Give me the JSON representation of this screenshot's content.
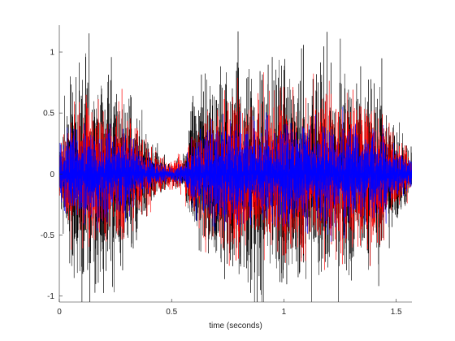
{
  "chart_data": {
    "type": "line",
    "title": "",
    "xlabel": "time (seconds)",
    "ylabel": "",
    "xlim": [
      0,
      1.57
    ],
    "ylim": [
      -1.05,
      1.22
    ],
    "xticks": [
      0,
      0.5,
      1,
      1.5
    ],
    "xtick_labels": [
      "0",
      "0.5",
      "1",
      "1.5"
    ],
    "yticks": [
      -1,
      -0.5,
      0,
      0.5,
      1
    ],
    "ytick_labels": [
      "-1",
      "-0.5",
      "0",
      "0.5",
      "1"
    ],
    "grid": false,
    "legend": "none",
    "box": "open",
    "series": [
      {
        "color": "#000000",
        "values_shown_as": "dense noisy waveform",
        "envelope": {
          "t": [
            0,
            0.05,
            0.1,
            0.15,
            0.2,
            0.25,
            0.3,
            0.35,
            0.4,
            0.45,
            0.5,
            0.55,
            0.6,
            0.65,
            0.7,
            0.8,
            0.9,
            1.0,
            1.1,
            1.2,
            1.3,
            1.4,
            1.45,
            1.5,
            1.55,
            1.57
          ],
          "amplitude": [
            0.25,
            0.65,
            0.85,
            0.78,
            0.72,
            0.68,
            0.6,
            0.45,
            0.28,
            0.15,
            0.08,
            0.12,
            0.5,
            0.75,
            0.8,
            0.82,
            0.8,
            0.78,
            0.78,
            0.75,
            0.74,
            0.72,
            0.6,
            0.4,
            0.22,
            0.18
          ]
        },
        "peak_max": 1.22,
        "peak_min": -1.05
      },
      {
        "color": "#ff0000",
        "values_shown_as": "dense noisy waveform",
        "envelope": {
          "t": [
            0,
            0.05,
            0.1,
            0.15,
            0.2,
            0.25,
            0.3,
            0.35,
            0.4,
            0.45,
            0.5,
            0.55,
            0.6,
            0.65,
            0.7,
            0.8,
            0.9,
            1.0,
            1.1,
            1.2,
            1.3,
            1.4,
            1.45,
            1.5,
            1.55,
            1.57
          ],
          "amplitude": [
            0.18,
            0.42,
            0.55,
            0.52,
            0.48,
            0.45,
            0.4,
            0.3,
            0.2,
            0.13,
            0.1,
            0.12,
            0.35,
            0.5,
            0.55,
            0.56,
            0.55,
            0.55,
            0.55,
            0.55,
            0.54,
            0.52,
            0.42,
            0.3,
            0.16,
            0.12
          ]
        }
      },
      {
        "color": "#0000ff",
        "values_shown_as": "dense noisy waveform",
        "envelope": {
          "t": [
            0,
            0.05,
            0.1,
            0.15,
            0.2,
            0.25,
            0.3,
            0.35,
            0.4,
            0.45,
            0.5,
            0.55,
            0.6,
            0.65,
            0.7,
            0.8,
            0.9,
            1.0,
            1.1,
            1.2,
            1.3,
            1.4,
            1.45,
            1.5,
            1.55,
            1.57
          ],
          "amplitude": [
            0.16,
            0.3,
            0.36,
            0.35,
            0.33,
            0.31,
            0.27,
            0.2,
            0.12,
            0.07,
            0.05,
            0.07,
            0.26,
            0.35,
            0.37,
            0.37,
            0.36,
            0.36,
            0.36,
            0.36,
            0.35,
            0.34,
            0.28,
            0.2,
            0.12,
            0.1
          ]
        }
      }
    ]
  }
}
